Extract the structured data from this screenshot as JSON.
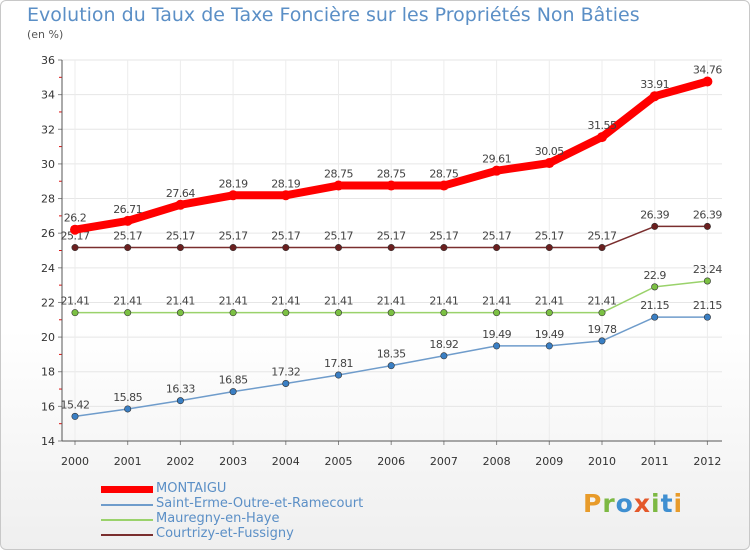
{
  "title": "Evolution du Taux de Taxe Foncière sur les Propriétés Non Bâties",
  "unit_label": "(en %)",
  "logo": {
    "text": "Proxiti",
    "colors": [
      "#e89b2a",
      "#7db943",
      "#3f8fd1",
      "#e4582a",
      "#7db943",
      "#3f8fd1",
      "#e89b2a"
    ]
  },
  "chart_data": {
    "type": "line",
    "categories": [
      "2000",
      "2001",
      "2002",
      "2003",
      "2004",
      "2005",
      "2006",
      "2007",
      "2008",
      "2009",
      "2010",
      "2011",
      "2012"
    ],
    "ylim": [
      14,
      36
    ],
    "yticks": [
      14,
      16,
      18,
      20,
      22,
      24,
      26,
      28,
      30,
      32,
      34,
      36
    ],
    "grid": true,
    "legend_position": "bottom-left",
    "series": [
      {
        "name": "MONTAIGU",
        "color": "#ff0000",
        "thick": true,
        "values": [
          26.2,
          26.71,
          27.64,
          28.19,
          28.19,
          28.75,
          28.75,
          28.75,
          29.61,
          30.05,
          31.55,
          33.91,
          34.76
        ],
        "labels": [
          "26.2",
          "26.71",
          "27.64",
          "28.19",
          "28.19",
          "28.75",
          "28.75",
          "28.75",
          "29.61",
          "30.05",
          "31.55",
          "33.91",
          "34.76"
        ]
      },
      {
        "name": "Saint-Erme-Outre-et-Ramecourt",
        "color": "#6f9ccb",
        "marker": "#3a7fc4",
        "values": [
          15.42,
          15.85,
          16.33,
          16.85,
          17.32,
          17.81,
          18.35,
          18.92,
          19.49,
          19.49,
          19.78,
          21.15,
          21.15
        ],
        "labels": [
          "15.42",
          "15.85",
          "16.33",
          "16.85",
          "17.32",
          "17.81",
          "18.35",
          "18.92",
          "19.49",
          "19.49",
          "19.78",
          "21.15",
          "21.15"
        ]
      },
      {
        "name": "Mauregny-en-Haye",
        "color": "#9ad26b",
        "marker": "#7bc043",
        "values": [
          21.41,
          21.41,
          21.41,
          21.41,
          21.41,
          21.41,
          21.41,
          21.41,
          21.41,
          21.41,
          21.41,
          22.9,
          23.24
        ],
        "labels": [
          "21.41",
          "21.41",
          "21.41",
          "21.41",
          "21.41",
          "21.41",
          "21.41",
          "21.41",
          "21.41",
          "21.41",
          "21.41",
          "22.9",
          "23.24"
        ]
      },
      {
        "name": "Courtrizy-et-Fussigny",
        "color": "#7a2e2e",
        "marker": "#6b1f1f",
        "values": [
          25.17,
          25.17,
          25.17,
          25.17,
          25.17,
          25.17,
          25.17,
          25.17,
          25.17,
          25.17,
          25.17,
          26.39,
          26.39
        ],
        "labels": [
          "25.17",
          "25.17",
          "25.17",
          "25.17",
          "25.17",
          "25.17",
          "25.17",
          "25.17",
          "25.17",
          "25.17",
          "25.17",
          "26.39",
          "26.39"
        ]
      }
    ]
  }
}
